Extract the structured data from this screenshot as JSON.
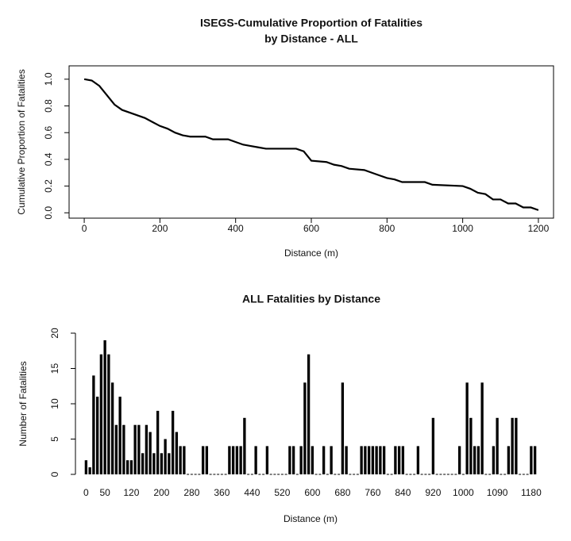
{
  "chart_data": [
    {
      "type": "line",
      "title": [
        "ISEGS-Cumulative Proportion of Fatalities",
        "by Distance - ALL"
      ],
      "x_label": "Distance (m)",
      "y_label": "Cumulative Proportion of Fatalities",
      "x": [
        0,
        20,
        40,
        60,
        80,
        100,
        120,
        140,
        160,
        180,
        200,
        220,
        240,
        260,
        280,
        320,
        340,
        380,
        400,
        420,
        440,
        460,
        480,
        560,
        580,
        600,
        640,
        660,
        680,
        700,
        740,
        760,
        780,
        800,
        820,
        840,
        900,
        920,
        1000,
        1020,
        1040,
        1060,
        1080,
        1100,
        1120,
        1140,
        1160,
        1180,
        1200
      ],
      "values": [
        1.0,
        0.99,
        0.95,
        0.88,
        0.81,
        0.77,
        0.75,
        0.73,
        0.71,
        0.68,
        0.65,
        0.63,
        0.6,
        0.58,
        0.57,
        0.57,
        0.55,
        0.55,
        0.53,
        0.51,
        0.5,
        0.49,
        0.48,
        0.48,
        0.46,
        0.39,
        0.38,
        0.36,
        0.35,
        0.33,
        0.32,
        0.3,
        0.28,
        0.26,
        0.25,
        0.23,
        0.23,
        0.21,
        0.2,
        0.18,
        0.15,
        0.14,
        0.1,
        0.1,
        0.07,
        0.07,
        0.04,
        0.04,
        0.02
      ],
      "color": "#000000",
      "xlim": [
        -40,
        1240
      ],
      "ylim": [
        -0.04,
        1.1
      ],
      "xticks": [
        0,
        200,
        400,
        600,
        800,
        1000,
        1200
      ],
      "yticks": [
        {
          "value": 0,
          "label": "0.0"
        },
        0.2,
        0.4,
        0.6,
        0.8,
        {
          "value": 1,
          "label": "1.0"
        }
      ]
    },
    {
      "type": "bar",
      "title": [
        "ALL Fatalities by Distance"
      ],
      "x_label": "Distance (m)",
      "y_label": "Number of Fatalities",
      "categories": [
        "0",
        null,
        null,
        null,
        null,
        "50",
        null,
        null,
        null,
        null,
        null,
        null,
        "120",
        null,
        null,
        null,
        null,
        null,
        null,
        null,
        "200",
        null,
        null,
        null,
        null,
        null,
        null,
        null,
        "280",
        null,
        null,
        null,
        null,
        null,
        null,
        null,
        "360",
        null,
        null,
        null,
        null,
        null,
        null,
        null,
        "440",
        null,
        null,
        null,
        null,
        null,
        null,
        null,
        "520",
        null,
        null,
        null,
        null,
        null,
        null,
        null,
        "600",
        null,
        null,
        null,
        null,
        null,
        null,
        null,
        "680",
        null,
        null,
        null,
        null,
        null,
        null,
        null,
        "760",
        null,
        null,
        null,
        null,
        null,
        null,
        null,
        "840",
        null,
        null,
        null,
        null,
        null,
        null,
        null,
        "920",
        null,
        null,
        null,
        null,
        null,
        null,
        null,
        "1000",
        null,
        null,
        null,
        null,
        null,
        null,
        null,
        null,
        "1090",
        null,
        null,
        null,
        null,
        null,
        null,
        null,
        null,
        "1180",
        null
      ],
      "values": [
        2,
        1,
        14,
        11,
        17,
        19,
        17,
        13,
        7,
        11,
        7,
        2,
        2,
        7,
        7,
        3,
        7,
        6,
        3,
        9,
        3,
        5,
        3,
        9,
        6,
        4,
        4,
        0,
        0,
        0,
        0,
        4,
        4,
        0,
        0,
        0,
        0,
        0,
        4,
        4,
        4,
        4,
        8,
        0,
        0,
        4,
        0,
        0,
        4,
        0,
        0,
        0,
        0,
        0,
        4,
        4,
        0,
        4,
        13,
        17,
        4,
        0,
        0,
        4,
        0,
        4,
        0,
        0,
        13,
        4,
        0,
        0,
        0,
        4,
        4,
        4,
        4,
        4,
        4,
        4,
        0,
        0,
        4,
        4,
        4,
        0,
        0,
        0,
        4,
        0,
        0,
        0,
        8,
        0,
        0,
        0,
        0,
        0,
        0,
        4,
        0,
        13,
        8,
        4,
        4,
        13,
        0,
        0,
        4,
        8,
        0,
        0,
        4,
        8,
        8,
        0,
        0,
        0,
        4,
        4
      ],
      "color": "#000000",
      "ylim": [
        0,
        20
      ],
      "yticks": [
        0,
        5,
        10,
        15,
        20
      ]
    }
  ]
}
